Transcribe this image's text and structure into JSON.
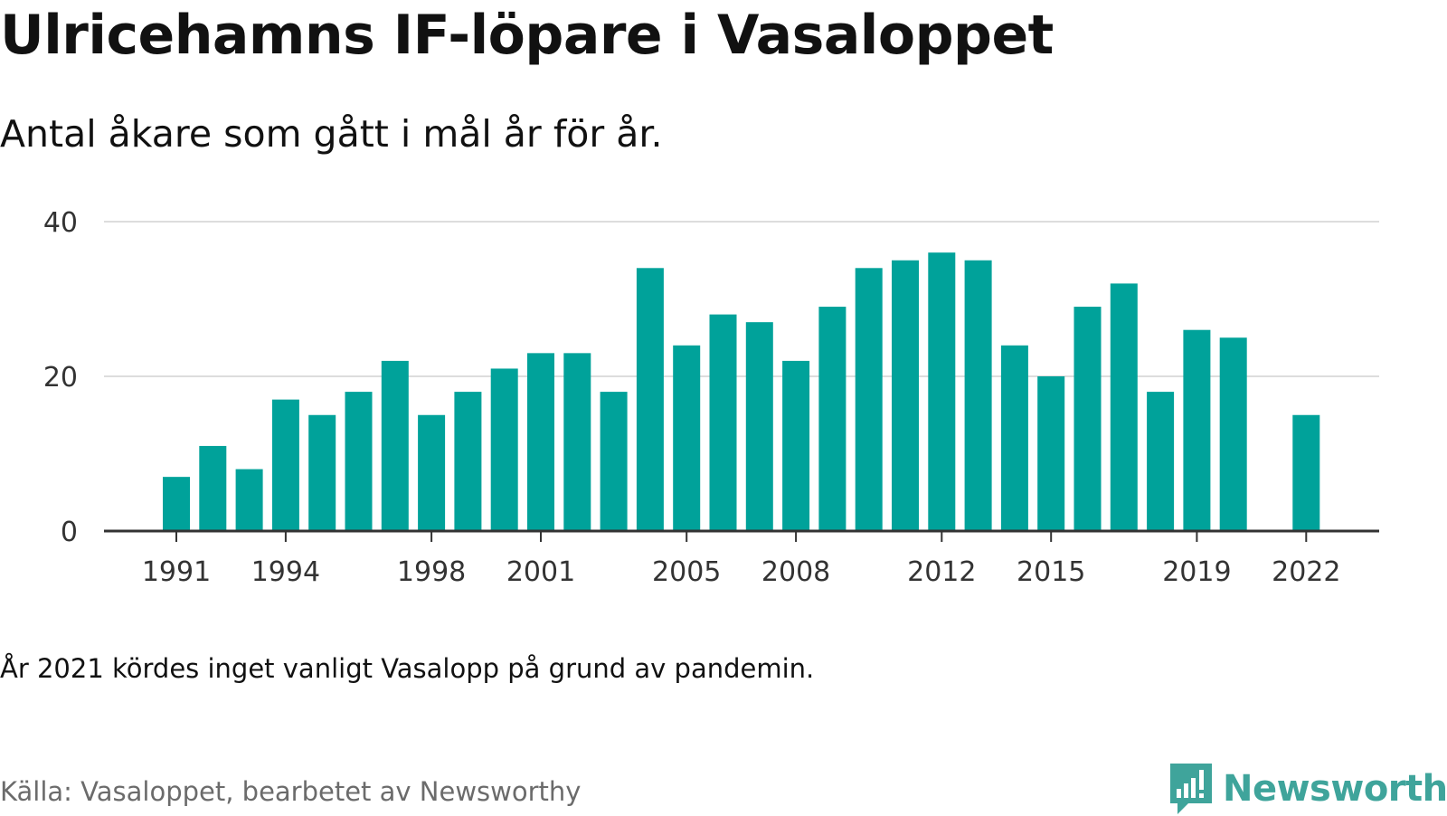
{
  "header": {
    "title": "Ulricehamns IF-löpare i Vasaloppet",
    "subtitle": "Antal åkare som gått i mål år för år."
  },
  "footer": {
    "footnote": "År 2021 kördes inget vanligt Vasalopp på grund av pandemin.",
    "source": "Källa: Vasaloppet, bearbetet av Newsworthy",
    "logo_text": "Newsworthy",
    "logo_icon": "newsworthy-chart-bubble-icon",
    "logo_color": "#3fa49b"
  },
  "chart_data": {
    "type": "bar",
    "categories": [
      1991,
      1992,
      1993,
      1994,
      1995,
      1996,
      1997,
      1998,
      1999,
      2000,
      2001,
      2002,
      2003,
      2004,
      2005,
      2006,
      2007,
      2008,
      2009,
      2010,
      2011,
      2012,
      2013,
      2014,
      2015,
      2016,
      2017,
      2018,
      2019,
      2020,
      2021,
      2022
    ],
    "values": [
      7,
      11,
      8,
      17,
      15,
      18,
      22,
      15,
      18,
      21,
      23,
      23,
      18,
      34,
      24,
      28,
      27,
      22,
      29,
      34,
      35,
      36,
      35,
      24,
      20,
      29,
      32,
      18,
      26,
      25,
      null,
      15
    ],
    "x_tick_labels": [
      "1991",
      "1994",
      "1998",
      "2001",
      "2005",
      "2008",
      "2012",
      "2015",
      "2019",
      "2022"
    ],
    "y_ticks": [
      0,
      20,
      40
    ],
    "ylim": [
      0,
      40
    ],
    "xlabel": "",
    "ylabel": "",
    "grid": true,
    "bar_color": "#00a29a",
    "grid_color": "#dddddd",
    "axis_color": "#333333"
  }
}
